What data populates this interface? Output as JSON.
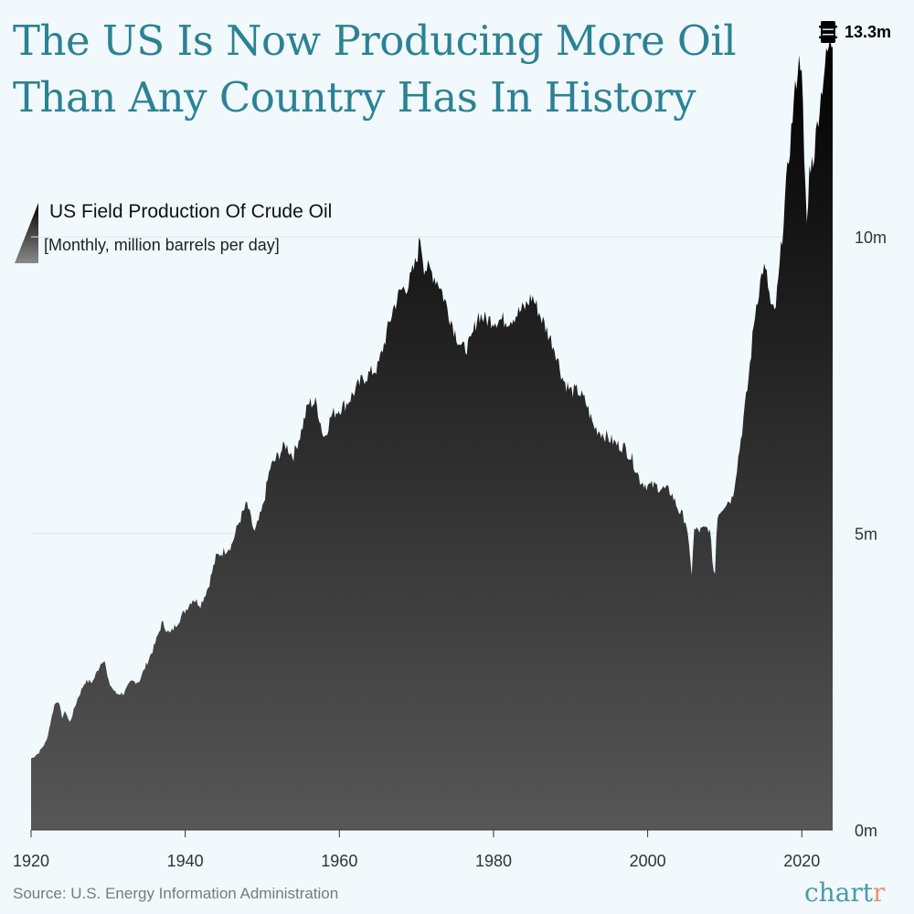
{
  "header": {
    "title_line1": "The US Is Now Producing More Oil",
    "title_line2": "Than Any Country Has In History"
  },
  "legend": {
    "title": "US Field Production Of Crude Oil",
    "subtitle": "[Monthly, million barrels per day]"
  },
  "peak_label": "13.3m",
  "footer": {
    "source": "Source: U.S. Energy Information Administration",
    "brand_main": "chart",
    "brand_accent": "r"
  },
  "colors": {
    "background": "#f1f9fc",
    "title": "#2c8294",
    "area_top": "#000000",
    "area_bottom": "#575757",
    "brand_accent": "#e8956e"
  },
  "icons": {
    "peak": "oil-barrel-icon",
    "legend": "gradient-wedge-icon"
  },
  "chart_data": {
    "type": "area",
    "title": "The US Is Now Producing More Oil Than Any Country Has In History",
    "xlabel": "",
    "ylabel": "",
    "x_ticks": [
      1920,
      1940,
      1960,
      1980,
      2000,
      2020
    ],
    "y_ticks": [
      {
        "value": 0,
        "label": "0m"
      },
      {
        "value": 5,
        "label": "5m"
      },
      {
        "value": 10,
        "label": "10m"
      }
    ],
    "xlim": [
      1920,
      2024
    ],
    "ylim": [
      0,
      13.5
    ],
    "grid": "horizontal",
    "y_axis_position": "right",
    "series": [
      {
        "x": [
          1920,
          1921,
          1922,
          1923,
          1923.5,
          1924,
          1924.5,
          1925,
          1926,
          1927,
          1928,
          1929,
          1929.5,
          1930,
          1931,
          1932,
          1933,
          1934,
          1935,
          1936,
          1937,
          1938,
          1939,
          1940,
          1941,
          1942,
          1943,
          1944,
          1945,
          1946,
          1947,
          1948,
          1949,
          1950,
          1951,
          1952,
          1953,
          1954,
          1955,
          1956,
          1957,
          1958,
          1959,
          1960,
          1961,
          1962,
          1963,
          1964,
          1965,
          1966,
          1967,
          1968,
          1969,
          1970,
          1970.5,
          1971,
          1972,
          1973,
          1974,
          1975,
          1976,
          1977,
          1978,
          1979,
          1980,
          1981,
          1982,
          1983,
          1984,
          1985,
          1986,
          1987,
          1988,
          1989,
          1990,
          1991,
          1992,
          1993,
          1994,
          1995,
          1996,
          1997,
          1998,
          1999,
          2000,
          2001,
          2002,
          2003,
          2004,
          2005,
          2005.7,
          2006,
          2007,
          2008,
          2008.7,
          2009,
          2010,
          2011,
          2012,
          2013,
          2014,
          2015,
          2015.5,
          2016,
          2016.5,
          2017,
          2018,
          2019,
          2019.5,
          2020,
          2020.3,
          2020.7,
          2021,
          2021.5,
          2022,
          2023,
          2023.5,
          2024
        ],
        "values": [
          1.2,
          1.3,
          1.5,
          2.1,
          2.2,
          1.9,
          2.0,
          1.8,
          2.2,
          2.5,
          2.5,
          2.8,
          2.9,
          2.5,
          2.3,
          2.3,
          2.5,
          2.5,
          2.8,
          3.1,
          3.5,
          3.3,
          3.5,
          3.7,
          3.9,
          3.8,
          4.1,
          4.6,
          4.7,
          4.8,
          5.2,
          5.5,
          5.0,
          5.4,
          6.1,
          6.3,
          6.5,
          6.3,
          6.7,
          7.2,
          7.2,
          6.6,
          7.0,
          7.1,
          7.2,
          7.4,
          7.6,
          7.7,
          7.8,
          8.3,
          8.8,
          9.1,
          9.2,
          9.6,
          10.0,
          9.5,
          9.4,
          9.2,
          8.8,
          8.4,
          8.1,
          8.2,
          8.7,
          8.6,
          8.6,
          8.6,
          8.6,
          8.7,
          8.8,
          9.0,
          8.7,
          8.4,
          8.1,
          7.6,
          7.4,
          7.4,
          7.2,
          6.8,
          6.7,
          6.6,
          6.5,
          6.45,
          6.25,
          5.9,
          5.8,
          5.8,
          5.75,
          5.7,
          5.4,
          5.2,
          4.3,
          5.05,
          5.05,
          5.1,
          4.2,
          5.3,
          5.5,
          5.6,
          6.5,
          7.5,
          8.8,
          9.5,
          9.3,
          8.8,
          8.7,
          9.3,
          10.9,
          12.3,
          12.9,
          13.0,
          11.2,
          10.1,
          11.2,
          11.3,
          11.9,
          12.9,
          13.2,
          13.3
        ]
      }
    ],
    "annotations": [
      {
        "text": "13.3m",
        "x": 2024,
        "y": 13.3
      }
    ]
  }
}
